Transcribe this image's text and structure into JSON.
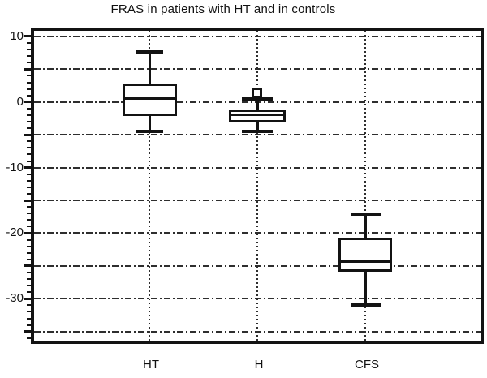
{
  "figure": {
    "background": "#ffffff",
    "line_color": "#131313",
    "grid_color": "#2e2e2e"
  },
  "chart_data": {
    "type": "box",
    "title": "FRAS in patients with HT and in controls",
    "xlabel": "",
    "ylabel": "",
    "categories": [
      "HT",
      "H",
      "CFS"
    ],
    "series": [
      {
        "name": "HT",
        "whisker_low": -4.5,
        "q1": -2.1,
        "median": 0.5,
        "q3": 2.8,
        "whisker_high": 7.6,
        "outliers": []
      },
      {
        "name": "H",
        "whisker_low": -4.5,
        "q1": -3.1,
        "median": -2.0,
        "q3": -1.1,
        "whisker_high": 0.5,
        "outliers": [
          1.5
        ]
      },
      {
        "name": "CFS",
        "whisker_low": -31.0,
        "q1": -25.9,
        "median": -24.3,
        "q3": -20.7,
        "whisker_high": -17.1,
        "outliers": []
      }
    ],
    "ylim": [
      -36.9,
      11.6
    ],
    "y_labeled_ticks": [
      10,
      0,
      -10,
      -20,
      -30
    ],
    "y_gridlines": [
      10,
      5,
      0,
      -5,
      -10,
      -15,
      -20,
      -25,
      -30,
      -35
    ],
    "y_minor_tick_step": 1,
    "y_major_tick_step": 5,
    "grid_style": {
      "horizontal": "dash-dot",
      "vertical": "dotted-at-category-centers"
    },
    "legend": "none"
  }
}
